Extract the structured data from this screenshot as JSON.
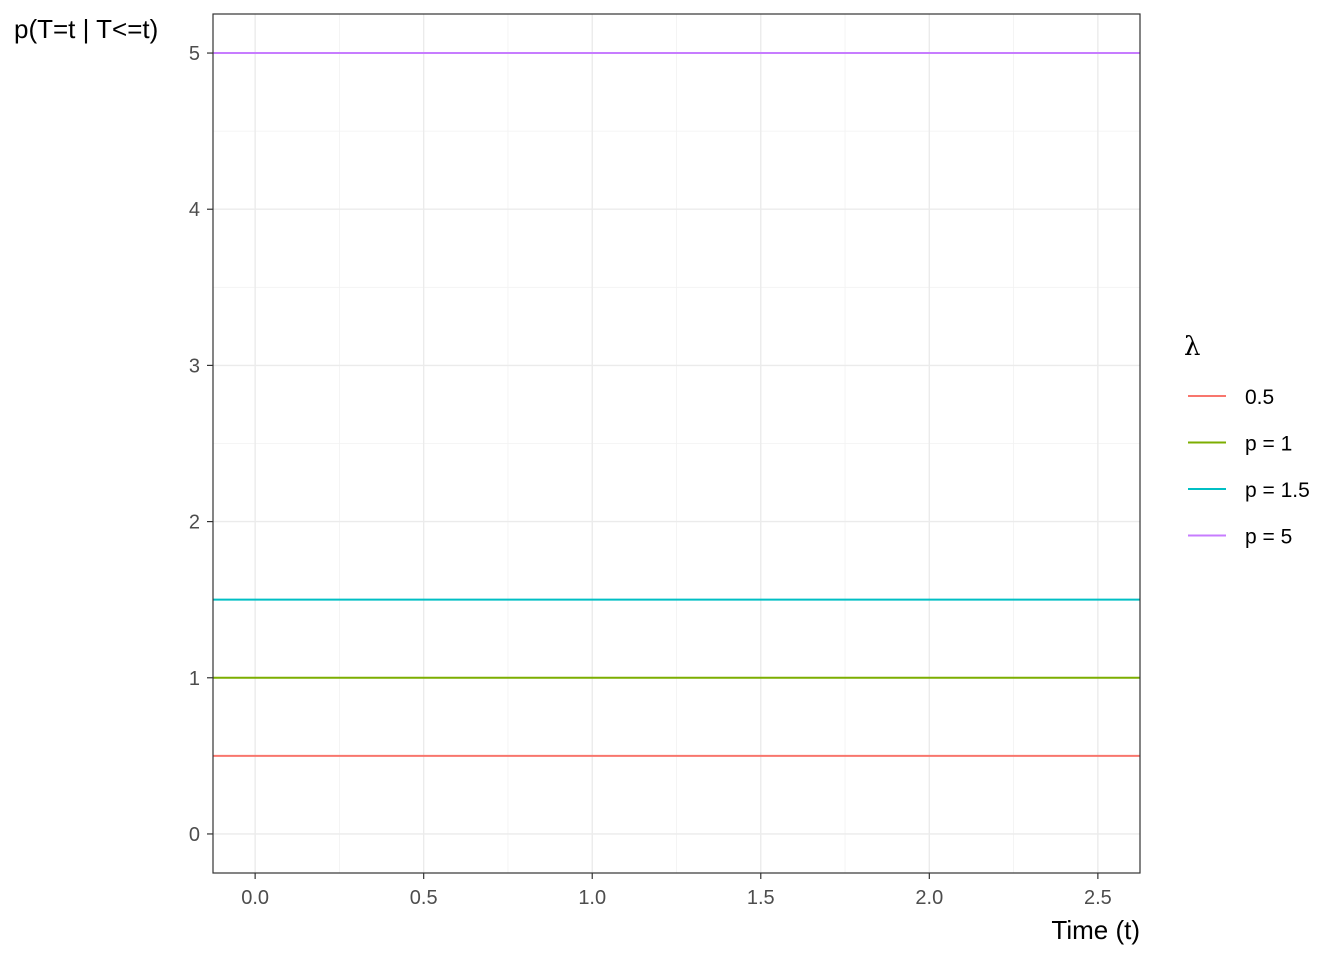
{
  "chart_data": {
    "type": "line",
    "xlabel": "Time (t)",
    "ylabel": "p(T=t | T<=t)",
    "xlim": [
      -0.125,
      2.625
    ],
    "ylim": [
      -0.25,
      5.25
    ],
    "x_ticks": [
      0.0,
      0.5,
      1.0,
      1.5,
      2.0,
      2.5
    ],
    "x_tick_labels": [
      "0.0",
      "0.5",
      "1.0",
      "1.5",
      "2.0",
      "2.5"
    ],
    "y_ticks": [
      0,
      1,
      2,
      3,
      4,
      5
    ],
    "y_tick_labels": [
      "0",
      "1",
      "2",
      "3",
      "4",
      "5"
    ],
    "grid": true,
    "legend": {
      "title": "λ",
      "placement": "right"
    },
    "series": [
      {
        "name": "0.5",
        "color": "#F8766D",
        "x": [
          -0.125,
          2.625
        ],
        "y": [
          0.5,
          0.5
        ]
      },
      {
        "name": "p = 1",
        "color": "#7CAE00",
        "x": [
          -0.125,
          2.625
        ],
        "y": [
          1,
          1
        ]
      },
      {
        "name": "p = 1.5",
        "color": "#00BFC4",
        "x": [
          -0.125,
          2.625
        ],
        "y": [
          1.5,
          1.5
        ]
      },
      {
        "name": "p = 5",
        "color": "#C77CFF",
        "x": [
          -0.125,
          2.625
        ],
        "y": [
          5,
          5
        ]
      }
    ]
  }
}
